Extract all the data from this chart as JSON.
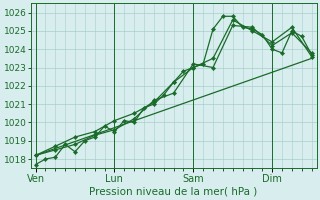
{
  "xlabel": "Pression niveau de la mer( hPa )",
  "bg_color": "#d8eeee",
  "grid_color": "#aacccc",
  "line_color": "#1a6b2a",
  "ylim": [
    1017.5,
    1026.5
  ],
  "xlim": [
    -3,
    171
  ],
  "x_major_ticks": [
    0,
    48,
    96,
    144,
    192
  ],
  "x_tick_positions": [
    0,
    48,
    96,
    144,
    192
  ],
  "x_tick_labels": [
    "Ven",
    "Lun",
    "Sam",
    "Dim",
    ""
  ],
  "series1_x": [
    0,
    6,
    12,
    18,
    24,
    30,
    36,
    42,
    48,
    54,
    60,
    66,
    72,
    78,
    84,
    90,
    96,
    102,
    108,
    114,
    120,
    126,
    132,
    138,
    144,
    150,
    156,
    162,
    168
  ],
  "series1_y": [
    1017.7,
    1018.0,
    1018.1,
    1018.8,
    1018.4,
    1019.0,
    1019.2,
    1019.8,
    1019.5,
    1020.1,
    1020.0,
    1020.8,
    1021.0,
    1021.5,
    1022.2,
    1022.8,
    1023.0,
    1023.2,
    1025.1,
    1025.8,
    1025.8,
    1025.2,
    1025.1,
    1024.8,
    1024.0,
    1023.8,
    1025.0,
    1024.7,
    1023.7
  ],
  "series2_x": [
    0,
    12,
    24,
    36,
    48,
    60,
    72,
    84,
    96,
    108,
    120,
    132,
    144,
    156,
    168
  ],
  "series2_y": [
    1018.2,
    1018.5,
    1018.8,
    1019.3,
    1019.6,
    1020.2,
    1021.2,
    1021.6,
    1023.2,
    1023.0,
    1025.3,
    1025.2,
    1024.2,
    1024.9,
    1023.8
  ],
  "series3_x": [
    0,
    12,
    24,
    36,
    48,
    60,
    72,
    84,
    96,
    108,
    120,
    132,
    144,
    156,
    168
  ],
  "series3_y": [
    1018.2,
    1018.7,
    1019.2,
    1019.5,
    1020.1,
    1020.5,
    1021.1,
    1022.2,
    1023.0,
    1023.5,
    1025.6,
    1025.0,
    1024.4,
    1025.2,
    1023.6
  ],
  "trend_x": [
    0,
    168
  ],
  "trend_y": [
    1018.2,
    1023.5
  ],
  "vlines": [
    0,
    48,
    96,
    144,
    192
  ]
}
